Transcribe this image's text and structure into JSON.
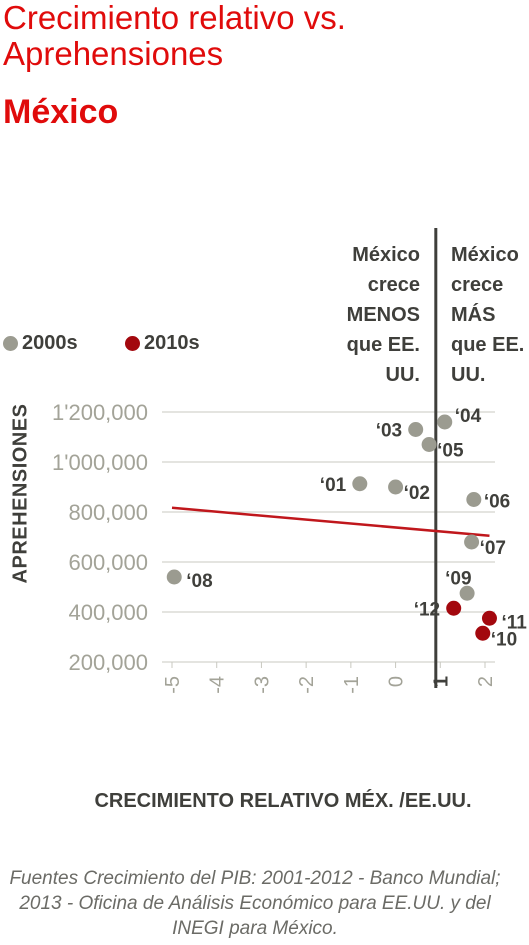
{
  "title": "Crecimiento relativo vs. Aprehensiones",
  "subtitle": "México",
  "legend": [
    {
      "label": "2000s",
      "color": "#9b9b90"
    },
    {
      "label": "2010s",
      "color": "#a3080e"
    }
  ],
  "regions": {
    "left": "México\ncrece\nMENOS\nque EE.\nUU.",
    "right": "México\ncrece\nMÁS\nque EE.\nUU."
  },
  "source": "Fuentes Crecimiento del PIB: 2001-2012 - Banco Mundial; 2013 - Oficina de Análisis Económico para EE.UU. y del INEGI para México.",
  "colors": {
    "accent": "#e00b0b",
    "decade_2000s": "#9b9b90",
    "decade_2010s": "#a3080e",
    "trend": "#c0171c",
    "axis": "#3f3f3b",
    "grid": "#c8c8c0"
  },
  "chart_data": {
    "type": "scatter",
    "xlabel": "CRECIMIENTO RELATIVO MÉX. /EE.UU.",
    "ylabel": "APREHENSIONES",
    "xlim": [
      -5.3,
      2.25
    ],
    "ylim": [
      200000,
      1250000
    ],
    "divider_x": 0.9,
    "x_ticks": [
      "-5",
      "-4",
      "-3",
      "-2",
      "-1",
      "0",
      "1",
      "2"
    ],
    "x_tick_values": [
      -5,
      -4,
      -3,
      -2,
      -1,
      0,
      1,
      2
    ],
    "y_ticks": [
      "200,000",
      "400,000",
      "600,000",
      "800,000",
      "1'000,000",
      "1'200,000"
    ],
    "y_tick_values": [
      200000,
      400000,
      600000,
      800000,
      1000000,
      1200000
    ],
    "series": [
      {
        "name": "2000s",
        "points": [
          {
            "label": "'01",
            "x": -0.8,
            "y": 913000
          },
          {
            "label": "'02",
            "x": 0.0,
            "y": 900000
          },
          {
            "label": "'03",
            "x": 0.45,
            "y": 1130000
          },
          {
            "label": "'04",
            "x": 1.1,
            "y": 1160000
          },
          {
            "label": "'05",
            "x": 0.75,
            "y": 1070000
          },
          {
            "label": "'06",
            "x": 1.75,
            "y": 850000
          },
          {
            "label": "'07",
            "x": 1.7,
            "y": 680000
          },
          {
            "label": "'08",
            "x": -4.95,
            "y": 540000
          },
          {
            "label": "'09",
            "x": 1.6,
            "y": 475000
          }
        ]
      },
      {
        "name": "2010s",
        "points": [
          {
            "label": "'10",
            "x": 1.95,
            "y": 315000
          },
          {
            "label": "'11",
            "x": 2.1,
            "y": 375000
          },
          {
            "label": "'12",
            "x": 1.3,
            "y": 415000
          }
        ]
      }
    ],
    "trendline": {
      "x": [
        -5.0,
        2.1
      ],
      "y": [
        817000,
        705000
      ]
    },
    "grid": true,
    "legend_position": "top-left"
  }
}
